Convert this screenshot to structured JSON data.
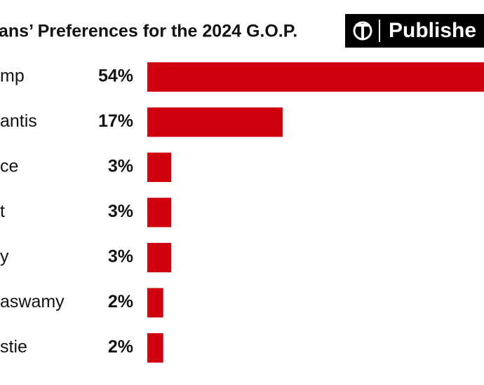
{
  "chart_data": {
    "type": "bar",
    "orientation": "horizontal",
    "title": "ans’ Preferences for the 2024 G.O.P.",
    "categories": [
      "mp",
      "antis",
      "ce",
      "t",
      "y",
      "aswamy",
      "stie"
    ],
    "values": [
      54,
      17,
      3,
      3,
      3,
      2,
      2
    ],
    "value_labels": [
      "54%",
      "17%",
      "3%",
      "3%",
      "3%",
      "2%",
      "2%"
    ],
    "color": "#d0000f"
  },
  "badge": {
    "text": "Publishe"
  }
}
